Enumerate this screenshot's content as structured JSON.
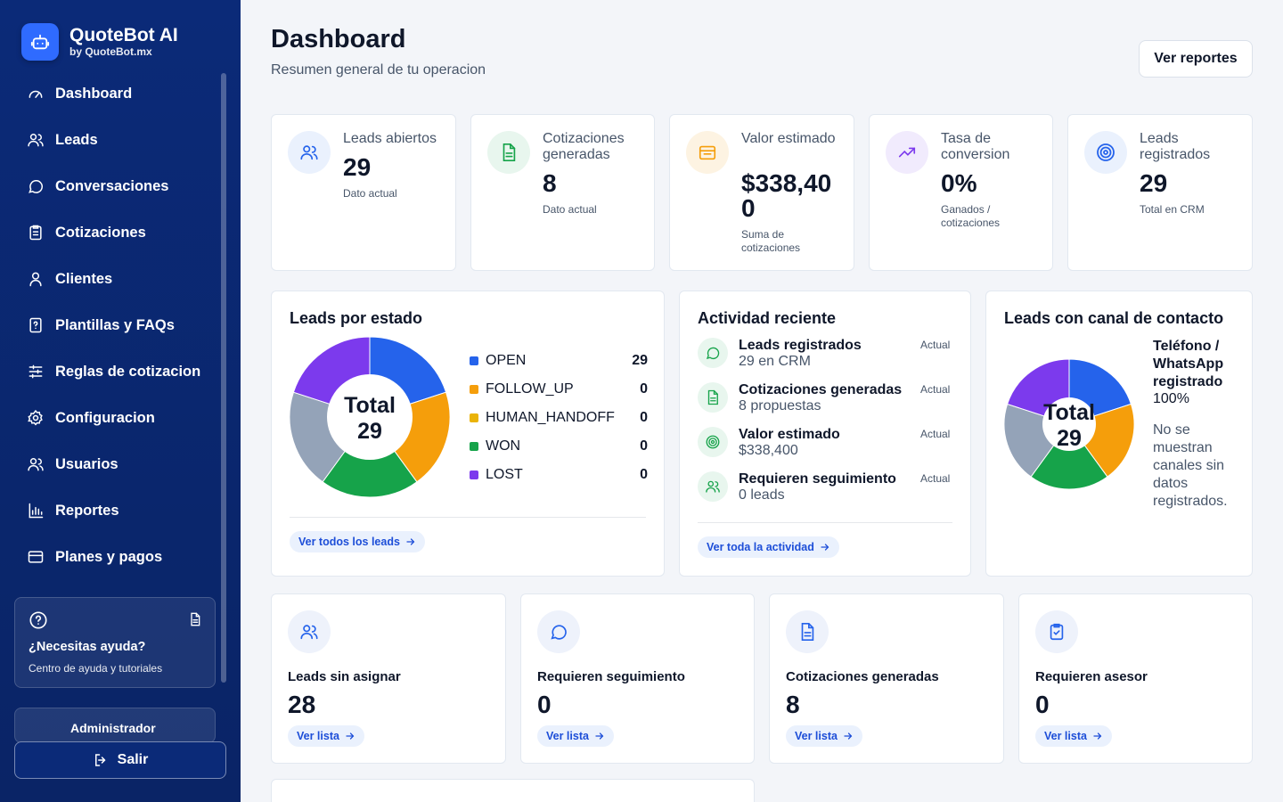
{
  "brand": {
    "name": "QuoteBot AI",
    "sub": "by QuoteBot.mx"
  },
  "nav": [
    {
      "label": "Dashboard",
      "icon": "gauge-icon"
    },
    {
      "label": "Leads",
      "icon": "users-icon"
    },
    {
      "label": "Conversaciones",
      "icon": "chat-icon"
    },
    {
      "label": "Cotizaciones",
      "icon": "clipboard-icon"
    },
    {
      "label": "Clientes",
      "icon": "user-icon"
    },
    {
      "label": "Plantillas y FAQs",
      "icon": "faq-icon"
    },
    {
      "label": "Reglas de cotizacion",
      "icon": "sliders-icon"
    },
    {
      "label": "Configuracion",
      "icon": "gear-icon"
    },
    {
      "label": "Usuarios",
      "icon": "users-icon"
    },
    {
      "label": "Reportes",
      "icon": "bar-chart-icon"
    },
    {
      "label": "Planes y pagos",
      "icon": "card-icon"
    }
  ],
  "help": {
    "title": "¿Necesitas ayuda?",
    "sub": "Centro de ayuda y tutoriales"
  },
  "admin": {
    "label": "Administrador"
  },
  "logout": {
    "label": "Salir"
  },
  "header": {
    "title": "Dashboard",
    "subtitle": "Resumen general de tu operacion",
    "reports_button": "Ver reportes"
  },
  "stats": [
    {
      "label": "Leads abiertos",
      "value": "29",
      "note": "Dato actual",
      "color": "#2563eb",
      "bg": "#eaf1fd"
    },
    {
      "label": "Cotizaciones generadas",
      "value": "8",
      "note": "Dato actual",
      "color": "#16a34a",
      "bg": "#e8f6ee"
    },
    {
      "label": "Valor estimado",
      "value": "$338,400",
      "note": "Suma de cotizaciones",
      "color": "#f59e0b",
      "bg": "#fdf3e2"
    },
    {
      "label": "Tasa de conversion",
      "value": "0%",
      "note": "Ganados / cotizaciones",
      "color": "#7c3aed",
      "bg": "#f1ebfd"
    },
    {
      "label": "Leads registrados",
      "value": "29",
      "note": "Total en CRM",
      "color": "#2563eb",
      "bg": "#eaf1fd"
    }
  ],
  "leads_por_estado": {
    "title": "Leads por estado",
    "total_label": "Total",
    "total_value": "29",
    "legend": [
      {
        "label": "OPEN",
        "value": "29",
        "color": "#2563eb"
      },
      {
        "label": "FOLLOW_UP",
        "value": "0",
        "color": "#f59e0b"
      },
      {
        "label": "HUMAN_HANDOFF",
        "value": "0",
        "color": "#eab308"
      },
      {
        "label": "WON",
        "value": "0",
        "color": "#16a34a"
      },
      {
        "label": "LOST",
        "value": "0",
        "color": "#7c3aed"
      }
    ],
    "link": "Ver todos los leads"
  },
  "actividad": {
    "title": "Actividad reciente",
    "items": [
      {
        "title": "Leads registrados",
        "sub": "29 en CRM",
        "time": "Actual",
        "icon": "chat-icon"
      },
      {
        "title": "Cotizaciones generadas",
        "sub": "8 propuestas",
        "time": "Actual",
        "icon": "document-icon"
      },
      {
        "title": "Valor estimado",
        "sub": "$338,400",
        "time": "Actual",
        "icon": "target-icon"
      },
      {
        "title": "Requieren seguimiento",
        "sub": "0 leads",
        "time": "Actual",
        "icon": "users-icon"
      }
    ],
    "link": "Ver toda la actividad"
  },
  "canal": {
    "title": "Leads con canal de contacto",
    "total_label": "Total",
    "total_value": "29",
    "legend_title": "Teléfono / WhatsApp registrado",
    "legend_pct": "100%",
    "note": "No se muestran canales sin datos registrados."
  },
  "quick": [
    {
      "label": "Leads sin asignar",
      "value": "28",
      "link": "Ver lista",
      "icon": "users-icon"
    },
    {
      "label": "Requieren seguimiento",
      "value": "0",
      "link": "Ver lista",
      "icon": "chat-icon"
    },
    {
      "label": "Cotizaciones generadas",
      "value": "8",
      "link": "Ver lista",
      "icon": "document-icon"
    },
    {
      "label": "Requieren asesor",
      "value": "0",
      "link": "Ver lista",
      "icon": "clipboard-check-icon"
    }
  ],
  "chart_data": [
    {
      "type": "pie",
      "title": "Leads por estado",
      "categories": [
        "OPEN",
        "FOLLOW_UP",
        "HUMAN_HANDOFF",
        "WON",
        "LOST"
      ],
      "values": [
        29,
        0,
        0,
        0,
        0
      ],
      "visual_segment_colors": [
        "#2563eb",
        "#f59e0b",
        "#16a34a",
        "#94a3b8",
        "#7c3aed"
      ]
    },
    {
      "type": "pie",
      "title": "Leads con canal de contacto",
      "categories": [
        "Teléfono / WhatsApp registrado"
      ],
      "values": [
        100
      ]
    }
  ]
}
